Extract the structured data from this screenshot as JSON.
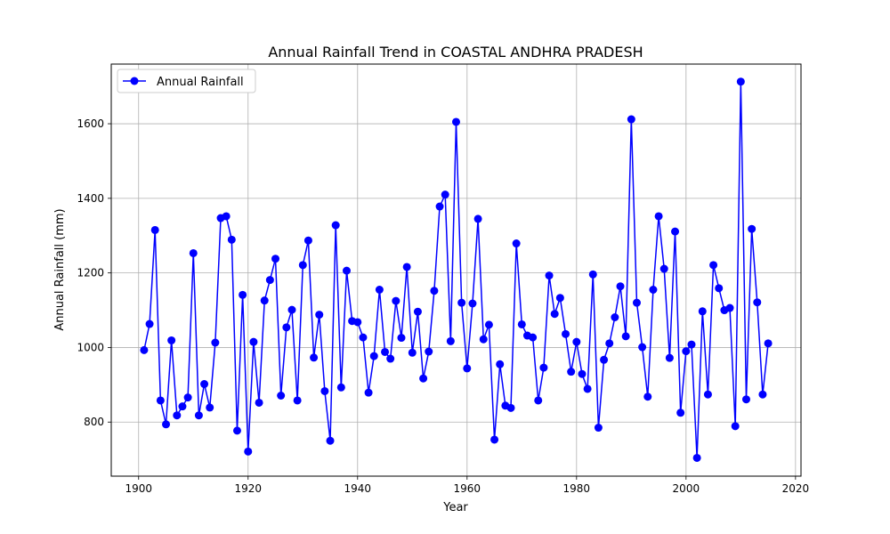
{
  "chart_data": {
    "type": "line",
    "title": "Annual Rainfall Trend in COASTAL ANDHRA PRADESH",
    "xlabel": "Year",
    "ylabel": "Annual Rainfall (mm)",
    "xlim": [
      1895,
      2021
    ],
    "ylim": [
      655,
      1760
    ],
    "xticks": [
      1900,
      1920,
      1940,
      1960,
      1980,
      2000,
      2020
    ],
    "yticks": [
      800,
      1000,
      1200,
      1400,
      1600
    ],
    "grid": true,
    "legend_position": "top-left",
    "series": [
      {
        "name": "Annual Rainfall",
        "color": "#0000ff",
        "marker": "circle",
        "x": [
          1901,
          1902,
          1903,
          1904,
          1905,
          1906,
          1907,
          1908,
          1909,
          1910,
          1911,
          1912,
          1913,
          1914,
          1915,
          1916,
          1917,
          1918,
          1919,
          1920,
          1921,
          1922,
          1923,
          1924,
          1925,
          1926,
          1927,
          1928,
          1929,
          1930,
          1931,
          1932,
          1933,
          1934,
          1935,
          1936,
          1937,
          1938,
          1939,
          1940,
          1941,
          1942,
          1943,
          1944,
          1945,
          1946,
          1947,
          1948,
          1949,
          1950,
          1951,
          1952,
          1953,
          1954,
          1955,
          1956,
          1957,
          1958,
          1959,
          1960,
          1961,
          1962,
          1963,
          1964,
          1965,
          1966,
          1967,
          1968,
          1969,
          1970,
          1971,
          1972,
          1973,
          1974,
          1975,
          1976,
          1977,
          1978,
          1979,
          1980,
          1981,
          1982,
          1983,
          1984,
          1985,
          1986,
          1987,
          1988,
          1989,
          1990,
          1991,
          1992,
          1993,
          1994,
          1995,
          1996,
          1997,
          1998,
          1999,
          2000,
          2001,
          2002,
          2003,
          2004,
          2005,
          2006,
          2007,
          2008,
          2009,
          2010,
          2011,
          2012,
          2013,
          2014,
          2015
        ],
        "values": [
          993,
          1063,
          1315,
          858,
          794,
          1019,
          818,
          842,
          866,
          1253,
          818,
          902,
          839,
          1013,
          1347,
          1352,
          1289,
          777,
          1141,
          721,
          1015,
          852,
          1126,
          1181,
          1238,
          871,
          1054,
          1101,
          858,
          1221,
          1287,
          973,
          1088,
          883,
          750,
          1328,
          893,
          1206,
          1071,
          1068,
          1027,
          879,
          977,
          1155,
          988,
          970,
          1125,
          1026,
          1216,
          986,
          1096,
          917,
          989,
          1152,
          1378,
          1410,
          1017,
          1605,
          1120,
          944,
          1118,
          1345,
          1022,
          1061,
          753,
          955,
          844,
          838,
          1279,
          1062,
          1032,
          1027,
          858,
          946,
          1193,
          1090,
          1133,
          1036,
          935,
          1015,
          929,
          889,
          1196,
          785,
          967,
          1011,
          1081,
          1164,
          1030,
          1612,
          1120,
          1001,
          868,
          1155,
          1352,
          1211,
          972,
          1311,
          825,
          990,
          1008,
          704,
          1097,
          874,
          1221,
          1159,
          1100,
          1106,
          789,
          1713,
          861,
          1318,
          1121,
          874,
          1011
        ]
      }
    ]
  }
}
